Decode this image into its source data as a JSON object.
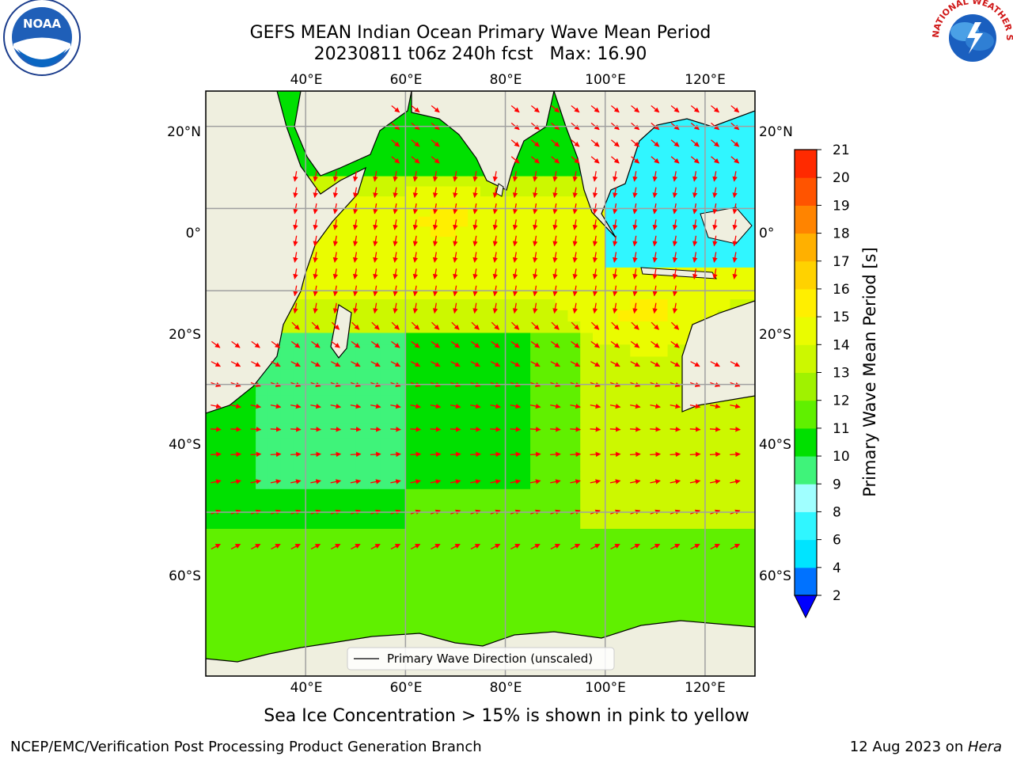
{
  "title": {
    "line1": "GEFS MEAN Indian Ocean Primary Wave Mean Period",
    "line2": "20230811 t06z 240h fcst   Max: 16.90"
  },
  "logos": {
    "left": {
      "name": "noaa-logo",
      "text": "NOAA"
    },
    "right": {
      "name": "nws-logo",
      "text": "NATIONAL WEATHER SERVICE"
    }
  },
  "map": {
    "lon_labels": [
      "40°E",
      "60°E",
      "80°E",
      "100°E",
      "120°E"
    ],
    "lat_labels": [
      "20°N",
      "0°",
      "20°S",
      "40°S",
      "60°S"
    ],
    "legend_label": "Primary Wave Direction (unscaled)",
    "arrow_color": "#ff0000",
    "land_color": "#efefdf"
  },
  "colorbar": {
    "label": "Primary Wave Mean Period [s]",
    "ticks": [
      "2",
      "4",
      "6",
      "8",
      "9",
      "10",
      "11",
      "12",
      "13",
      "14",
      "15",
      "16",
      "17",
      "18",
      "19",
      "20",
      "21"
    ],
    "colors": [
      "#0072ff",
      "#00e4ff",
      "#30f6ff",
      "#a0ffff",
      "#3ff37a",
      "#00e000",
      "#60f000",
      "#a0f200",
      "#ccf800",
      "#eafc00",
      "#ffef00",
      "#ffd200",
      "#ffb000",
      "#ff8400",
      "#ff5400",
      "#ff2a00"
    ],
    "under_color": "#0000ff"
  },
  "chart_data": {
    "type": "heatmap",
    "title": "GEFS MEAN Indian Ocean Primary Wave Mean Period",
    "subtitle": "20230811 t06z 240h fcst   Max: 16.90",
    "variable": "Primary Wave Mean Period [s]",
    "max": 16.9,
    "levels": [
      2,
      4,
      6,
      8,
      9,
      10,
      11,
      12,
      13,
      14,
      15,
      16,
      17,
      18,
      19,
      20,
      21
    ],
    "lon_range": [
      20,
      130
    ],
    "lat_range": [
      -75,
      28
    ],
    "lon_ticks": [
      40,
      60,
      80,
      100,
      120
    ],
    "lat_ticks": [
      20,
      0,
      -20,
      -40,
      -60
    ],
    "grid": true,
    "legend_location": "bottom-center"
  },
  "note": "Sea Ice Concentration > 15% is shown in pink to yellow",
  "footer": {
    "left": "NCEP/EMC/Verification Post Processing Product Generation Branch",
    "date": "12 Aug 2023 on ",
    "machine": "Hera"
  }
}
